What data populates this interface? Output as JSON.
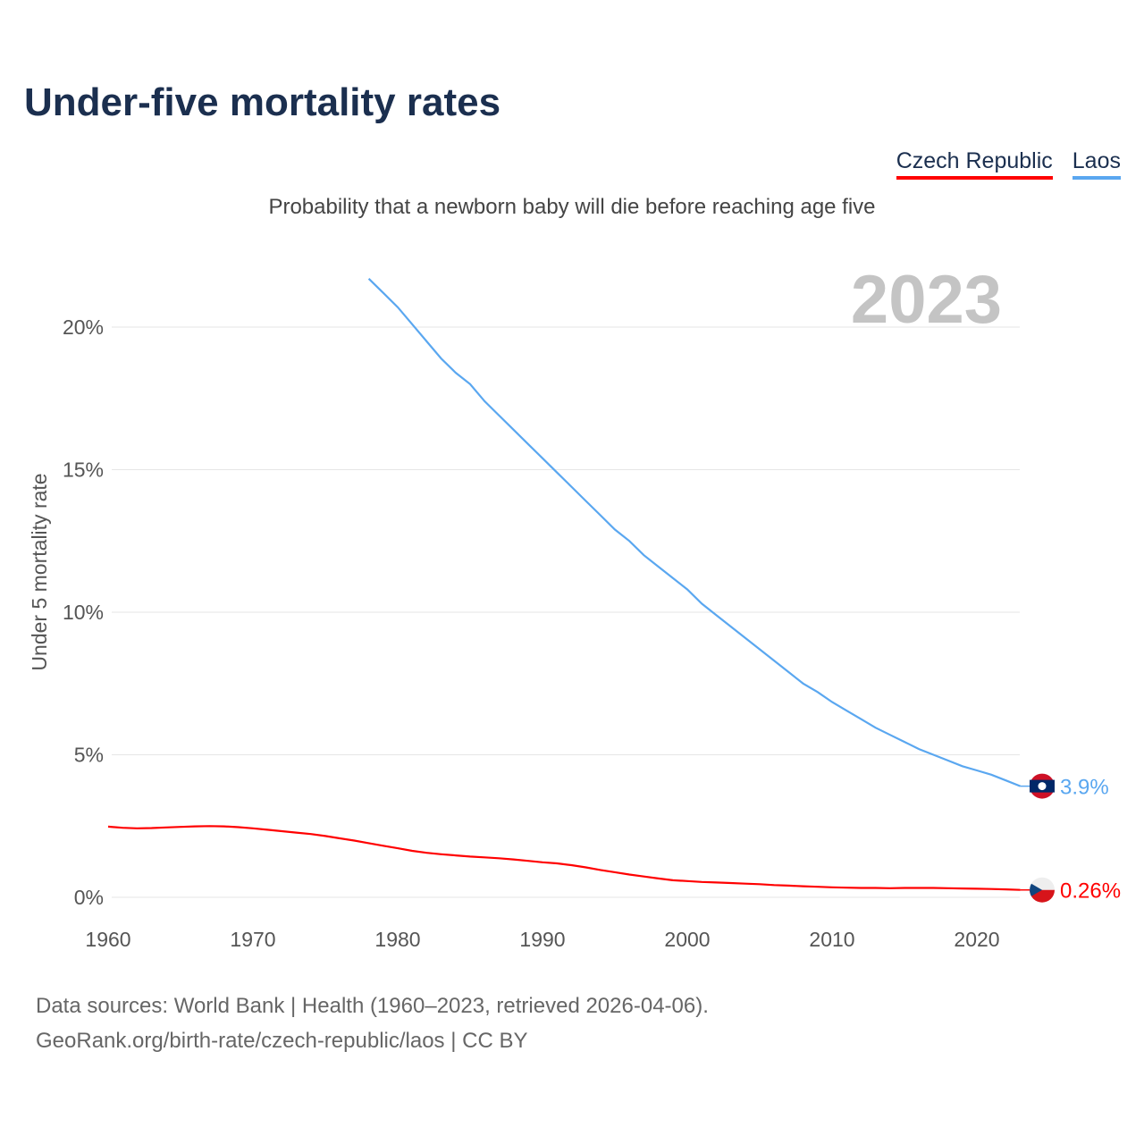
{
  "title": "Under-five mortality rates",
  "subtitle": "Probability that a newborn baby will die before reaching age five",
  "source_line1": "Data sources: World Bank | Health (1960–2023, retrieved 2026-04-06).",
  "source_line2": "GeoRank.org/birth-rate/czech-republic/laos | CC BY",
  "chart_data": {
    "type": "line",
    "title": "Under-five mortality rates",
    "ylabel": "Under 5 mortality rate",
    "xlabel": "",
    "year_label": "2023",
    "xlim": [
      1960,
      2023
    ],
    "ylim": [
      0,
      20
    ],
    "x_ticks": [
      1960,
      1970,
      1980,
      1990,
      2000,
      2010,
      2020
    ],
    "y_ticks": [
      {
        "v": 0,
        "label": "0%"
      },
      {
        "v": 5,
        "label": "5%"
      },
      {
        "v": 10,
        "label": "10%"
      },
      {
        "v": 15,
        "label": "15%"
      },
      {
        "v": 20,
        "label": "20%"
      }
    ],
    "legend_position": "top-right",
    "series": [
      {
        "name": "Czech Republic",
        "color": "#ff0000",
        "start": 1960,
        "end_label": "0.26%",
        "values": [
          2.48,
          2.44,
          2.42,
          2.43,
          2.45,
          2.47,
          2.49,
          2.5,
          2.49,
          2.46,
          2.42,
          2.37,
          2.32,
          2.27,
          2.22,
          2.15,
          2.07,
          1.99,
          1.9,
          1.81,
          1.72,
          1.63,
          1.56,
          1.51,
          1.47,
          1.43,
          1.4,
          1.37,
          1.33,
          1.28,
          1.23,
          1.19,
          1.13,
          1.05,
          0.96,
          0.88,
          0.8,
          0.73,
          0.66,
          0.6,
          0.57,
          0.54,
          0.52,
          0.5,
          0.48,
          0.46,
          0.43,
          0.41,
          0.39,
          0.37,
          0.35,
          0.34,
          0.33,
          0.33,
          0.32,
          0.33,
          0.33,
          0.33,
          0.32,
          0.31,
          0.3,
          0.29,
          0.28,
          0.26
        ]
      },
      {
        "name": "Laos",
        "color": "#5aa7f0",
        "start": 1978,
        "end_label": "3.9%",
        "values": [
          21.7,
          21.2,
          20.7,
          20.1,
          19.5,
          18.9,
          18.4,
          18.0,
          17.4,
          16.9,
          16.4,
          15.9,
          15.4,
          14.9,
          14.4,
          13.9,
          13.4,
          12.9,
          12.5,
          12.0,
          11.6,
          11.2,
          10.8,
          10.3,
          9.9,
          9.5,
          9.1,
          8.7,
          8.3,
          7.9,
          7.5,
          7.2,
          6.85,
          6.55,
          6.25,
          5.95,
          5.7,
          5.45,
          5.2,
          5.0,
          4.8,
          4.6,
          4.45,
          4.3,
          4.1,
          3.9
        ]
      }
    ]
  }
}
